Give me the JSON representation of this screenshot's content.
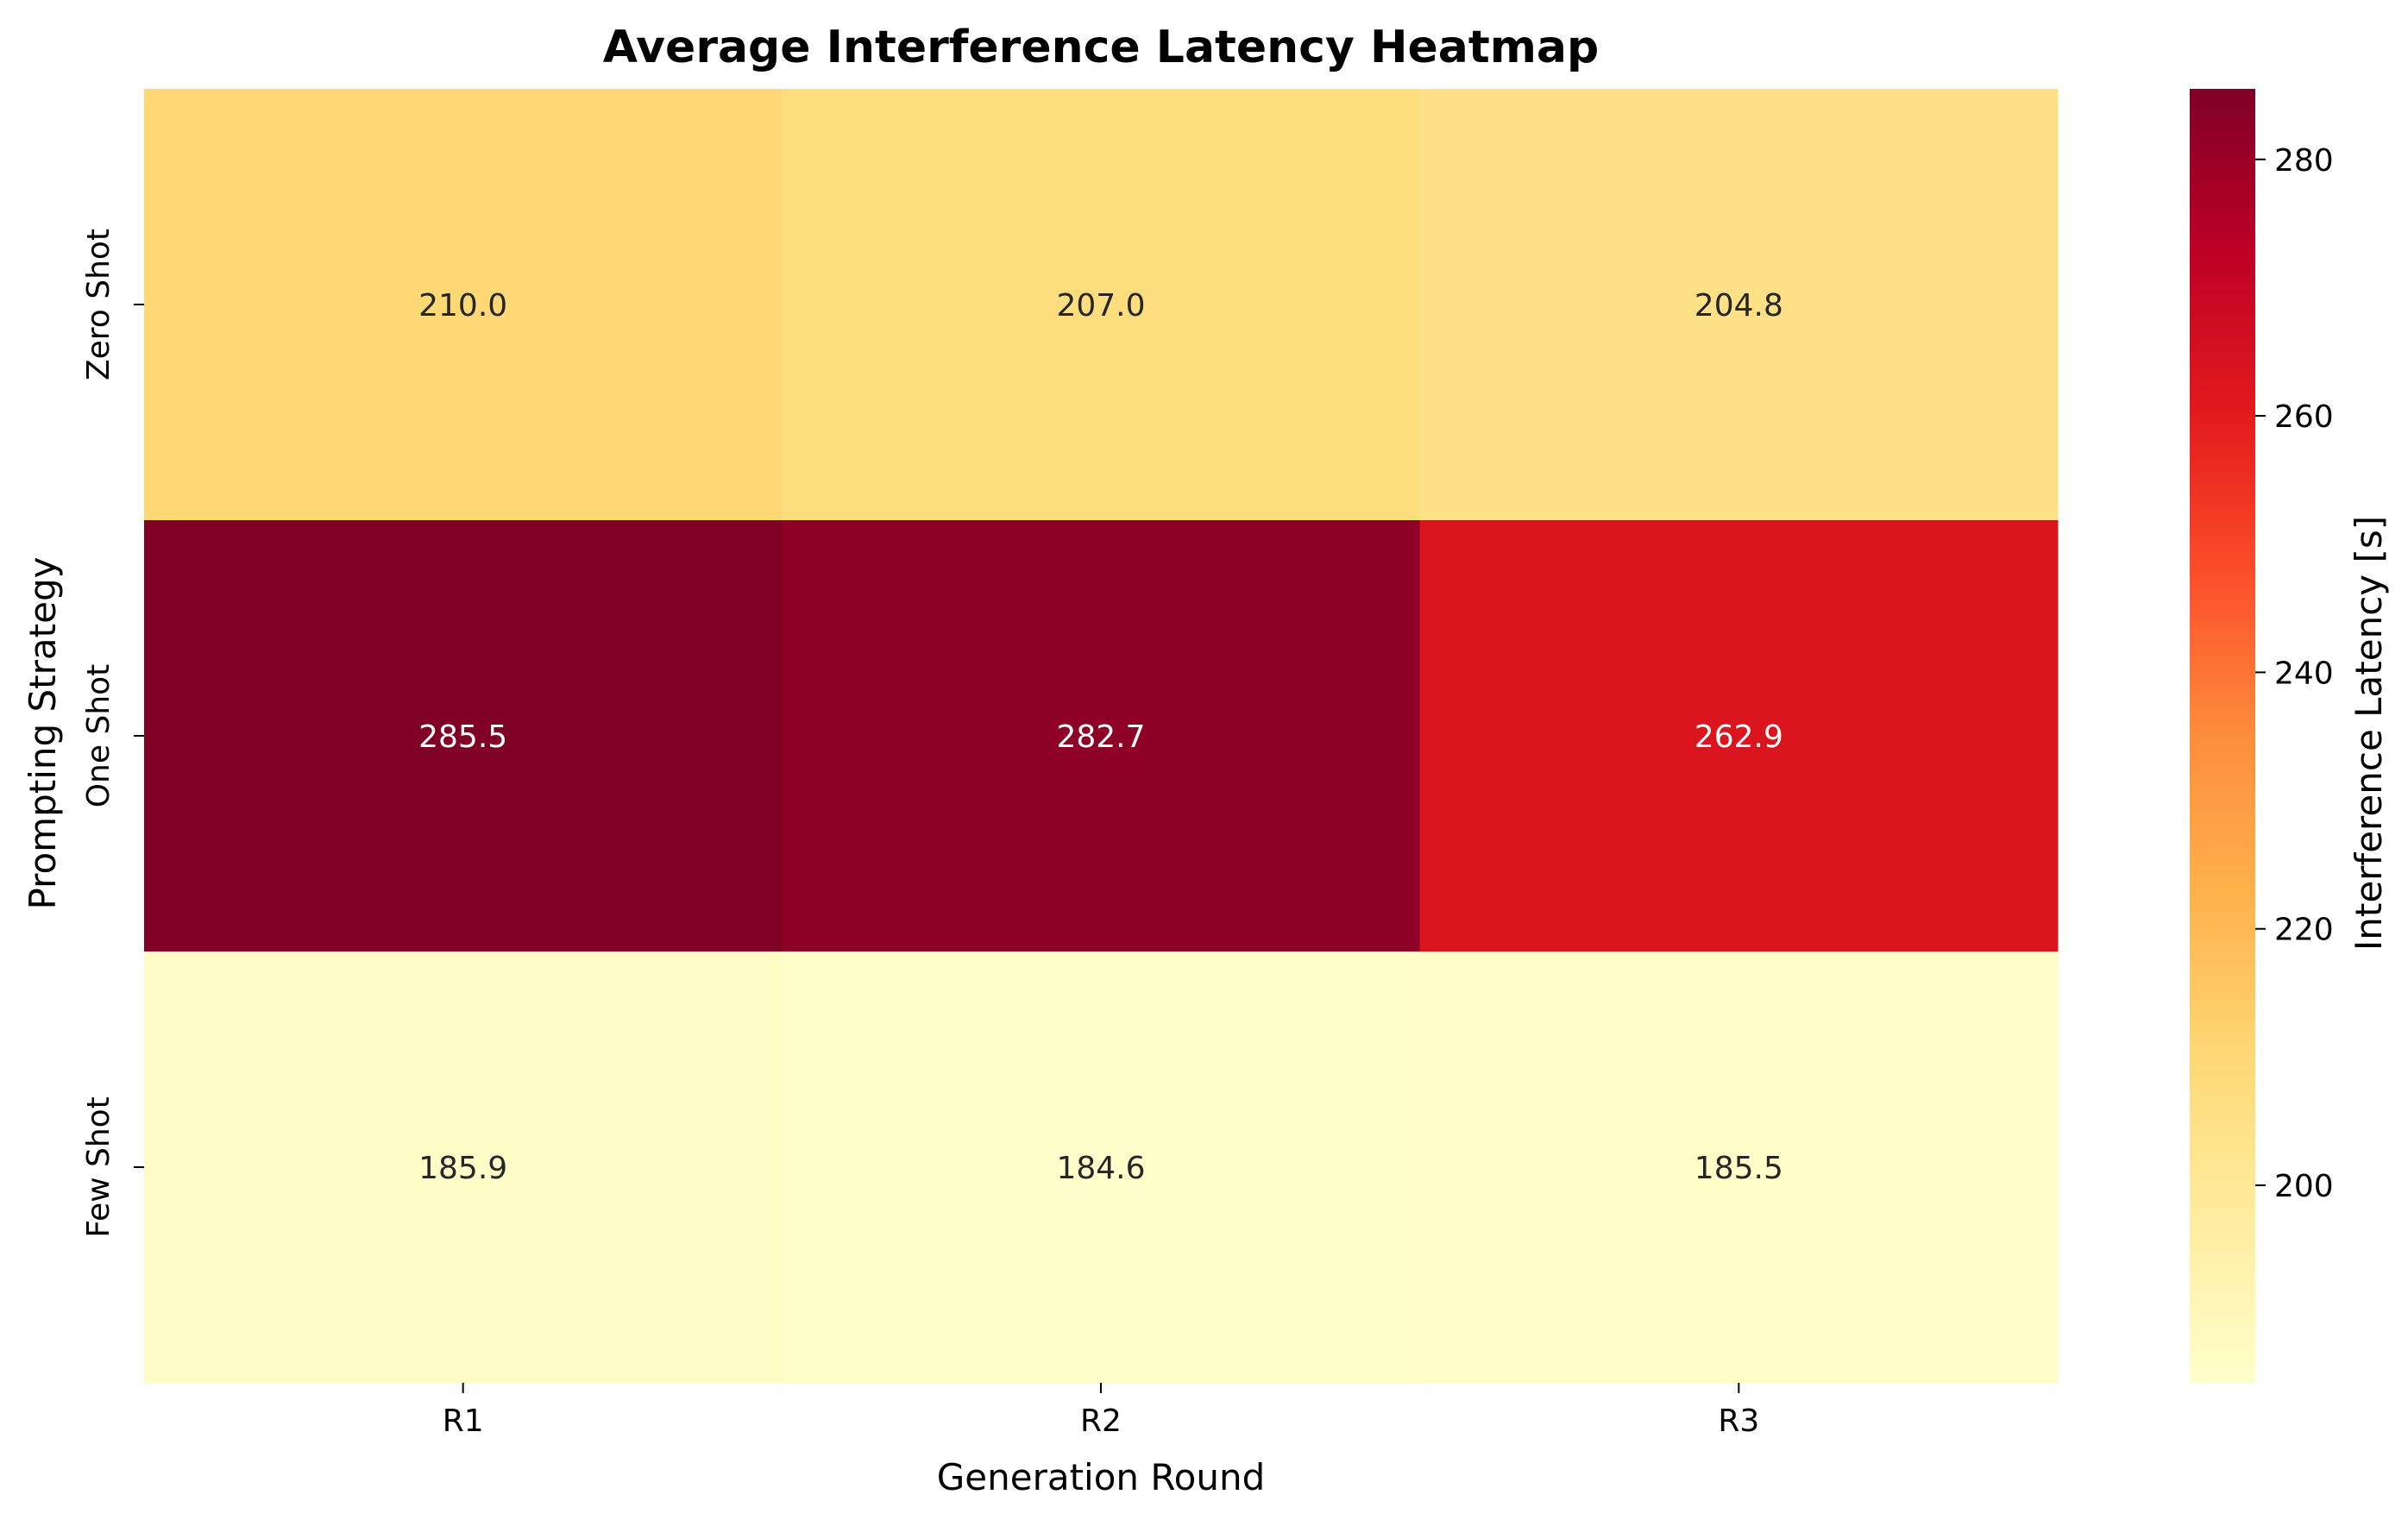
{
  "chart_data": {
    "type": "heatmap",
    "title": "Average Interference Latency Heatmap",
    "xlabel": "Generation Round",
    "ylabel": "Prompting Strategy",
    "x_categories": [
      "R1",
      "R2",
      "R3"
    ],
    "y_categories": [
      "Zero Shot",
      "One Shot",
      "Few Shot"
    ],
    "values": [
      [
        210.0,
        207.0,
        204.8
      ],
      [
        285.5,
        282.7,
        262.9
      ],
      [
        185.9,
        184.6,
        185.5
      ]
    ],
    "value_labels": [
      [
        "210.0",
        "207.0",
        "204.8"
      ],
      [
        "285.5",
        "282.7",
        "262.9"
      ],
      [
        "185.9",
        "184.6",
        "185.5"
      ]
    ],
    "colorbar": {
      "label": "Interference Latency [s]",
      "ticks": [
        200,
        220,
        240,
        260,
        280
      ],
      "range": [
        184.6,
        285.5
      ],
      "colormap": "YlOrRd"
    },
    "colormap_stops": [
      "#ffffcc",
      "#ffeda0",
      "#fed976",
      "#feb24c",
      "#fd8d3c",
      "#fc4e2a",
      "#e31a1c",
      "#bd0026",
      "#800026"
    ],
    "text_colors": {
      "dark": "#262626",
      "light": "#ffffff"
    }
  }
}
